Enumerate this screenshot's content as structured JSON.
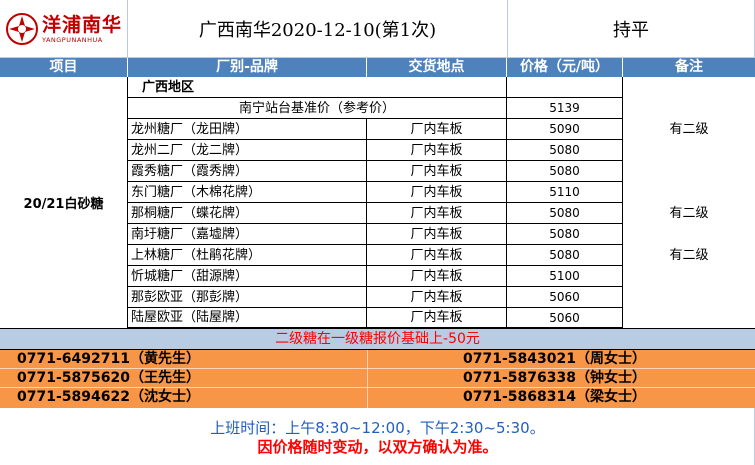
{
  "header": {
    "logo_text": "洋浦南华",
    "logo_sub": "YANGPUNANHUA",
    "title": "广西南华2020-12-10(第1次)",
    "status": "持平"
  },
  "columns": {
    "item": "项目",
    "factory": "厂别-品牌",
    "place": "交货地点",
    "price": "价格（元/吨）",
    "note": "备注"
  },
  "item": "20/21白砂糖",
  "region": "广西地区",
  "reference": {
    "label": "南宁站台基准价（参考价）",
    "price": "5139"
  },
  "rows": [
    {
      "factory": "龙州糖厂（龙田牌）",
      "place": "厂内车板",
      "price": "5090",
      "note": "有二级"
    },
    {
      "factory": "龙州二厂（龙二牌）",
      "place": "厂内车板",
      "price": "5080",
      "note": ""
    },
    {
      "factory": "霞秀糖厂（霞秀牌）",
      "place": "厂内车板",
      "price": "5080",
      "note": ""
    },
    {
      "factory": "东门糖厂（木棉花牌）",
      "place": "厂内车板",
      "price": "5110",
      "note": ""
    },
    {
      "factory": "那桐糖厂（蝶花牌）",
      "place": "厂内车板",
      "price": "5080",
      "note": "有二级"
    },
    {
      "factory": "南圩糖厂（嘉墟牌）",
      "place": "厂内车板",
      "price": "5080",
      "note": ""
    },
    {
      "factory": "上林糖厂（杜鹃花牌）",
      "place": "厂内车板",
      "price": "5080",
      "note": "有二级"
    },
    {
      "factory": "忻城糖厂（甜源牌）",
      "place": "厂内车板",
      "price": "5100",
      "note": ""
    },
    {
      "factory": "那彭欧亚（那彭牌）",
      "place": "厂内车板",
      "price": "5060",
      "note": ""
    },
    {
      "factory": "陆屋欧亚（陆屋牌）",
      "place": "厂内车板",
      "price": "5060",
      "note": ""
    }
  ],
  "notice": "二级糖在一级糖报价基础上-50元",
  "contacts": [
    {
      "left": "0771-6492711（黄先生）",
      "right": "0771-5843021（周女士）"
    },
    {
      "left": "0771-5875620（王先生）",
      "right": "0771-5876338（钟女士）"
    },
    {
      "left": "0771-5894622（沈女士）",
      "right": "0771-5868314（梁女士）"
    }
  ],
  "footer": {
    "hours": "上班时间：上午8:30~12:00，下午2:30~5:30。",
    "disclaimer": "因价格随时变动，以双方确认为准。"
  },
  "colors": {
    "header_blue": "#4f81bd",
    "notice_blue": "#b8cce4",
    "contact_orange": "#f79646",
    "brand_red": "#c00000"
  }
}
